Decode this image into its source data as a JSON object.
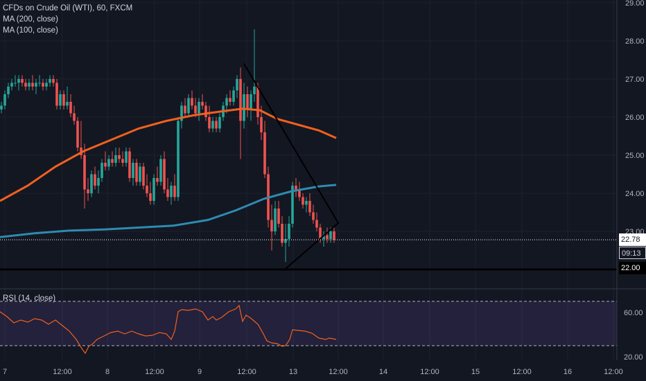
{
  "chart_data": {
    "type": "candlestick",
    "title": "CFDs on Crude Oil (WTI), 60, FXCM",
    "indicators": [
      "MA (200, close)",
      "MA (100, close)"
    ],
    "rsi_label": "RSI (14, close)",
    "price_axis": {
      "min": 20.0,
      "max": 29.0,
      "ticks": [
        "29.00",
        "28.00",
        "27.00",
        "26.00",
        "25.00",
        "24.00",
        "23.00",
        "22.00"
      ]
    },
    "rsi_axis": {
      "min": 0,
      "max": 100,
      "ticks": [
        "60.00",
        "20.00"
      ],
      "bands": [
        70,
        30
      ]
    },
    "x_labels": [
      "7",
      "12:00",
      "8",
      "12:00",
      "9",
      "12:00",
      "13",
      "12:00",
      "14",
      "12:00",
      "15",
      "12:00",
      "16",
      "12:00"
    ],
    "current_price": "22.78",
    "countdown": "09:13",
    "support_level": "22.00",
    "ma200": [
      [
        0,
        22.85
      ],
      [
        50,
        22.95
      ],
      [
        100,
        23.02
      ],
      [
        150,
        23.05
      ],
      [
        200,
        23.1
      ],
      [
        250,
        23.15
      ],
      [
        300,
        23.3
      ],
      [
        340,
        23.55
      ],
      [
        380,
        23.85
      ],
      [
        420,
        24.05
      ],
      [
        460,
        24.18
      ],
      [
        485,
        24.22
      ]
    ],
    "ma100": [
      [
        0,
        23.8
      ],
      [
        40,
        24.2
      ],
      [
        80,
        24.7
      ],
      [
        120,
        25.1
      ],
      [
        160,
        25.4
      ],
      [
        200,
        25.7
      ],
      [
        240,
        25.9
      ],
      [
        280,
        26.05
      ],
      [
        320,
        26.15
      ],
      [
        350,
        26.22
      ],
      [
        375,
        26.18
      ],
      [
        400,
        25.95
      ],
      [
        430,
        25.8
      ],
      [
        460,
        25.65
      ],
      [
        485,
        25.45
      ]
    ],
    "candles": [
      [
        2,
        26.2,
        26.4,
        26.1,
        26.3
      ],
      [
        7,
        26.3,
        26.7,
        26.2,
        26.6
      ],
      [
        12,
        26.6,
        26.9,
        26.5,
        26.8
      ],
      [
        17,
        26.8,
        27.0,
        26.7,
        26.9
      ],
      [
        22,
        26.9,
        27.1,
        26.8,
        26.9
      ],
      [
        27,
        26.9,
        27.1,
        26.7,
        27.0
      ],
      [
        32,
        27.0,
        27.1,
        26.8,
        26.9
      ],
      [
        37,
        26.9,
        27.0,
        26.7,
        26.8
      ],
      [
        42,
        26.8,
        27.0,
        26.7,
        26.9
      ],
      [
        47,
        26.9,
        27.1,
        26.7,
        26.8
      ],
      [
        52,
        26.8,
        27.0,
        26.6,
        26.9
      ],
      [
        57,
        26.9,
        27.1,
        26.8,
        26.9
      ],
      [
        62,
        26.9,
        27.0,
        26.7,
        26.8
      ],
      [
        67,
        26.8,
        27.0,
        26.7,
        26.9
      ],
      [
        72,
        26.9,
        27.1,
        26.8,
        27.0
      ],
      [
        77,
        27.0,
        27.1,
        26.8,
        26.9
      ],
      [
        82,
        26.9,
        27.0,
        26.2,
        26.3
      ],
      [
        87,
        26.3,
        26.7,
        26.2,
        26.6
      ],
      [
        92,
        26.6,
        26.7,
        26.2,
        26.3
      ],
      [
        97,
        26.3,
        26.8,
        26.2,
        26.4
      ],
      [
        102,
        26.4,
        26.6,
        26.0,
        26.1
      ],
      [
        107,
        26.1,
        26.3,
        25.8,
        25.9
      ],
      [
        112,
        25.9,
        26.0,
        25.1,
        25.2
      ],
      [
        117,
        25.2,
        25.9,
        24.9,
        25.0
      ],
      [
        122,
        25.0,
        25.3,
        23.6,
        24.1
      ],
      [
        127,
        24.1,
        24.4,
        23.8,
        24.0
      ],
      [
        132,
        24.0,
        24.6,
        23.9,
        24.5
      ],
      [
        137,
        24.5,
        24.7,
        24.1,
        24.2
      ],
      [
        142,
        24.2,
        24.6,
        24.0,
        24.4
      ],
      [
        147,
        24.4,
        24.9,
        24.3,
        24.8
      ],
      [
        152,
        24.8,
        25.1,
        24.6,
        24.7
      ],
      [
        157,
        24.7,
        25.0,
        24.6,
        24.9
      ],
      [
        162,
        24.9,
        25.1,
        24.7,
        24.8
      ],
      [
        167,
        24.8,
        25.2,
        24.7,
        25.0
      ],
      [
        172,
        25.0,
        25.2,
        24.8,
        24.9
      ],
      [
        177,
        24.9,
        25.1,
        24.7,
        24.8
      ],
      [
        182,
        24.8,
        25.2,
        24.7,
        25.1
      ],
      [
        187,
        25.1,
        25.2,
        24.3,
        24.4
      ],
      [
        192,
        24.4,
        24.9,
        24.2,
        24.8
      ],
      [
        197,
        24.8,
        24.9,
        24.2,
        24.3
      ],
      [
        202,
        24.3,
        24.8,
        24.2,
        24.7
      ],
      [
        207,
        24.7,
        24.8,
        24.1,
        24.2
      ],
      [
        212,
        24.2,
        24.5,
        23.9,
        24.0
      ],
      [
        217,
        24.0,
        24.3,
        23.7,
        23.8
      ],
      [
        222,
        23.8,
        24.5,
        23.7,
        24.4
      ],
      [
        227,
        24.4,
        24.7,
        24.2,
        24.3
      ],
      [
        232,
        24.3,
        25.0,
        24.2,
        24.9
      ],
      [
        237,
        24.9,
        25.1,
        24.0,
        24.1
      ],
      [
        242,
        24.1,
        24.4,
        23.8,
        23.9
      ],
      [
        247,
        23.9,
        24.3,
        23.7,
        24.2
      ],
      [
        252,
        24.2,
        24.5,
        23.8,
        23.9
      ],
      [
        257,
        23.9,
        26.0,
        23.8,
        25.9
      ],
      [
        262,
        25.9,
        26.4,
        25.7,
        26.3
      ],
      [
        267,
        26.3,
        26.5,
        26.0,
        26.1
      ],
      [
        272,
        26.1,
        26.6,
        26.0,
        26.5
      ],
      [
        277,
        26.5,
        26.7,
        26.2,
        26.3
      ],
      [
        282,
        26.3,
        26.5,
        26.0,
        26.1
      ],
      [
        287,
        26.1,
        26.5,
        25.9,
        26.4
      ],
      [
        292,
        26.4,
        26.6,
        26.2,
        26.3
      ],
      [
        297,
        26.3,
        26.4,
        25.9,
        26.0
      ],
      [
        302,
        26.0,
        26.3,
        25.6,
        25.7
      ],
      [
        307,
        25.7,
        26.0,
        25.6,
        25.9
      ],
      [
        312,
        25.9,
        26.0,
        25.6,
        25.7
      ],
      [
        317,
        25.7,
        26.1,
        25.6,
        26.0
      ],
      [
        322,
        26.0,
        26.4,
        25.9,
        26.3
      ],
      [
        327,
        26.3,
        26.6,
        26.1,
        26.5
      ],
      [
        332,
        26.5,
        26.7,
        26.3,
        26.4
      ],
      [
        337,
        26.4,
        26.8,
        26.3,
        26.7
      ],
      [
        342,
        26.7,
        27.1,
        26.5,
        27.0
      ],
      [
        347,
        27.0,
        27.3,
        24.9,
        25.9
      ],
      [
        352,
        25.9,
        26.9,
        25.7,
        26.6
      ],
      [
        357,
        26.6,
        26.8,
        26.0,
        26.2
      ],
      [
        362,
        26.2,
        26.7,
        25.9,
        26.6
      ],
      [
        367,
        26.6,
        28.3,
        26.4,
        26.8
      ],
      [
        372,
        26.8,
        26.9,
        25.8,
        26.0
      ],
      [
        377,
        26.0,
        26.3,
        25.4,
        25.6
      ],
      [
        382,
        25.6,
        25.9,
        24.4,
        24.5
      ],
      [
        387,
        24.5,
        24.7,
        23.1,
        23.3
      ],
      [
        392,
        23.3,
        23.7,
        22.5,
        23.0
      ],
      [
        397,
        23.0,
        23.8,
        22.9,
        23.6
      ],
      [
        402,
        23.6,
        23.8,
        23.1,
        23.2
      ],
      [
        407,
        23.2,
        23.4,
        22.6,
        22.7
      ],
      [
        412,
        22.7,
        23.2,
        22.2,
        22.8
      ],
      [
        417,
        22.8,
        23.4,
        22.6,
        23.2
      ],
      [
        422,
        23.2,
        24.3,
        23.1,
        24.2
      ],
      [
        427,
        24.2,
        24.4,
        23.9,
        24.1
      ],
      [
        432,
        24.1,
        24.3,
        23.8,
        23.9
      ],
      [
        437,
        23.9,
        24.0,
        23.6,
        23.7
      ],
      [
        442,
        23.7,
        23.9,
        23.5,
        23.8
      ],
      [
        447,
        23.8,
        24.0,
        23.4,
        23.5
      ],
      [
        452,
        23.5,
        23.7,
        23.2,
        23.3
      ],
      [
        457,
        23.3,
        23.5,
        23.0,
        23.1
      ],
      [
        462,
        23.1,
        23.2,
        22.7,
        22.8
      ],
      [
        467,
        22.8,
        23.0,
        22.6,
        22.9
      ],
      [
        472,
        22.9,
        23.1,
        22.7,
        22.8
      ],
      [
        477,
        22.8,
        23.1,
        22.7,
        23.0
      ],
      [
        482,
        23.0,
        23.1,
        22.7,
        22.78
      ]
    ],
    "rsi": [
      [
        0,
        450
      ],
      [
        10,
        457
      ],
      [
        20,
        466
      ],
      [
        30,
        462
      ],
      [
        40,
        465
      ],
      [
        50,
        460
      ],
      [
        60,
        462
      ],
      [
        70,
        468
      ],
      [
        80,
        462
      ],
      [
        90,
        470
      ],
      [
        100,
        478
      ],
      [
        110,
        490
      ],
      [
        118,
        503
      ],
      [
        123,
        510
      ],
      [
        128,
        500
      ],
      [
        133,
        497
      ],
      [
        140,
        490
      ],
      [
        150,
        485
      ],
      [
        160,
        480
      ],
      [
        170,
        478
      ],
      [
        180,
        482
      ],
      [
        190,
        478
      ],
      [
        200,
        482
      ],
      [
        210,
        485
      ],
      [
        220,
        484
      ],
      [
        230,
        480
      ],
      [
        240,
        482
      ],
      [
        247,
        490
      ],
      [
        252,
        478
      ],
      [
        257,
        450
      ],
      [
        262,
        447
      ],
      [
        272,
        448
      ],
      [
        282,
        446
      ],
      [
        292,
        450
      ],
      [
        300,
        462
      ],
      [
        307,
        457
      ],
      [
        312,
        462
      ],
      [
        320,
        458
      ],
      [
        330,
        450
      ],
      [
        340,
        446
      ],
      [
        345,
        441
      ],
      [
        350,
        464
      ],
      [
        355,
        455
      ],
      [
        360,
        458
      ],
      [
        365,
        462
      ],
      [
        372,
        468
      ],
      [
        380,
        482
      ],
      [
        385,
        492
      ],
      [
        392,
        495
      ],
      [
        400,
        496
      ],
      [
        407,
        500
      ],
      [
        412,
        499
      ],
      [
        418,
        490
      ],
      [
        422,
        476
      ],
      [
        430,
        477
      ],
      [
        440,
        478
      ],
      [
        450,
        481
      ],
      [
        460,
        488
      ],
      [
        470,
        490
      ],
      [
        475,
        488
      ],
      [
        485,
        490
      ]
    ]
  }
}
